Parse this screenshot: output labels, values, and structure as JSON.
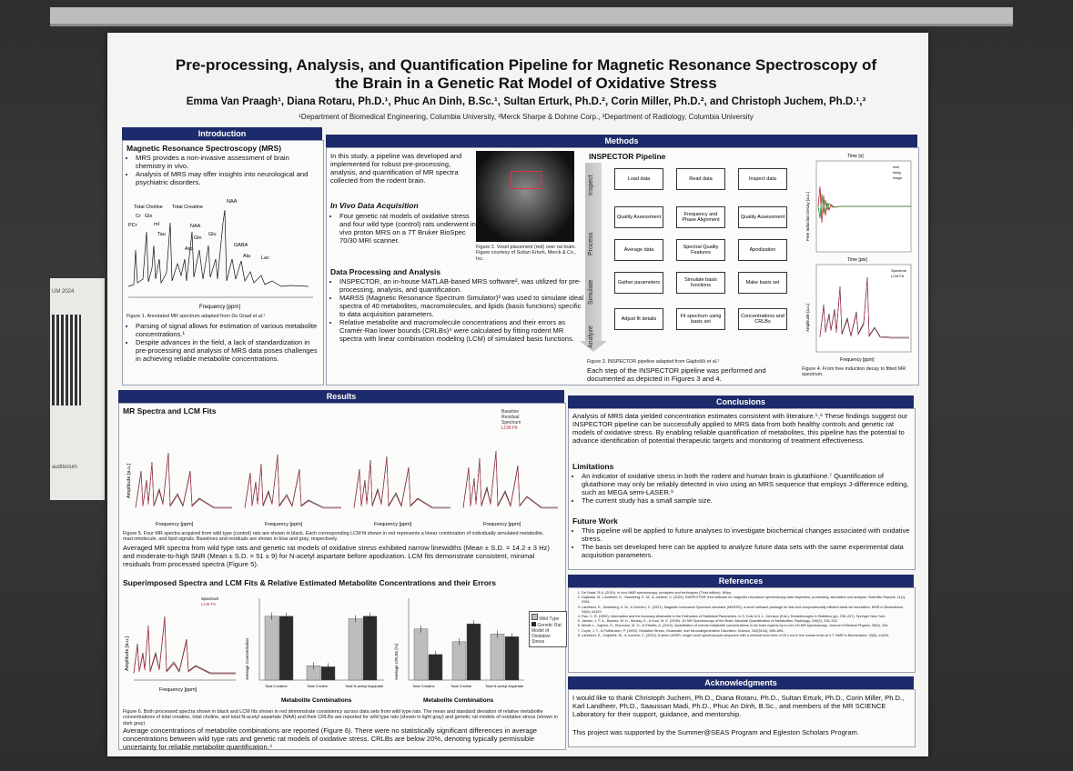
{
  "side": {
    "line1": "UM 2024",
    "line2": "auditorium"
  },
  "poster": {
    "title": "Pre-processing, Analysis, and Quantification Pipeline for Magnetic Resonance Spectroscopy of the Brain in a Genetic Rat Model of Oxidative Stress",
    "authors": "Emma Van Praagh¹, Diana Rotaru, Ph.D.¹, Phuc An Dinh, B.Sc.¹, Sultan Erturk, Ph.D.², Corin Miller, Ph.D.², and Christoph Juchem, Ph.D.¹,³",
    "affiliations": "¹Department of Biomedical Engineering, Columbia University, ²Merck Sharpe & Dohme Corp., ³Department of Radiology, Columbia University"
  },
  "intro": {
    "header": "Introduction",
    "subtitle": "Magnetic Resonance Spectroscopy (MRS)",
    "bullets": [
      "MRS provides a non-invasive assessment of brain chemistry in vivo.",
      "Analysis of MRS may offer insights into neurological and psychiatric disorders."
    ],
    "peaks": [
      "Total Choline",
      "Total Creatine",
      "NAA",
      "Cr",
      "Glx",
      "PCr",
      "mI",
      "Tau",
      "NAA",
      "Gln",
      "Glu",
      "Asp",
      "GABA",
      "Ala",
      "Lac"
    ],
    "axis": "Frequency [ppm]",
    "caption": "Figure 1. Annotated MR spectrum adapted from De Graaf et al.¹",
    "bullets2": [
      "Parsing of signal allows for estimation of various metabolite concentrations.¹",
      "Despite advances in the field, a lack of standardization in pre-processing and analysis of MRS data poses challenges in achieving reliable metabolite concentrations."
    ]
  },
  "methods": {
    "header": "Methods",
    "intro": "In this study, a pipeline was developed and implemented for robust pre-processing, analysis, and quantification of MR spectra collected from the rodent brain.",
    "acq_title": "In Vivo Data Acquisition",
    "acq_bullet": "Four genetic rat models of oxidative stress and four wild type (control) rats underwent in vivo proton MRS on a 7T Bruker BioSpec 70/30 MRI scanner.",
    "fig2_caption": "Figure 2. Voxel placement (red) over rat brain. Figure courtesy of Sultan Erturk, Merck & Co., Inc.",
    "proc_title": "Data Processing and Analysis",
    "proc_bullets": [
      "INSPECTOR, an in-house MATLAB-based MRS software², was utilized for pre-processing, analysis, and quantification.",
      "MARSS (Magnetic Resonance Spectrum Simulator)³ was used to simulate ideal spectra of 40 metabolites, macromolecules, and lipids (basis functions) specific to data acquisition parameters.",
      "Relative metabolite and macromolecule concentrations and their errors as Cramér-Rao lower bounds (CRLBs)⁴ were calculated by fitting rodent MR spectra with linear combination modeling (LCM) of simulated basis functions."
    ],
    "pipeline_title": "INSPECTOR Pipeline",
    "stages": [
      "Inspect",
      "Process",
      "Simulate",
      "Analyze"
    ],
    "flow": [
      [
        "Load data",
        "Read data",
        "Inspect data"
      ],
      [
        "Quality Assessment",
        "Frequency and Phase Alignment",
        "Quality Assessment"
      ],
      [
        "Average data",
        "Spectral Quality Features",
        "Apodization"
      ],
      [
        "Gather parameters",
        "Simulate basis functions",
        "Make basis set"
      ],
      [
        "Adjust fit details",
        "Fit spectrum using basis set",
        "Concentrations and CRLBs"
      ]
    ],
    "fig3_caption": "Figure 3. INSPECTOR pipeline adapted from Gajdošík et al.²",
    "fig3_text": "Each step of the INSPECTOR pipeline was performed and documented as depicted in Figures 3 and 4.",
    "fig4": {
      "top_axis": "Time [s]",
      "top_ylabel": "Free Induction Decay [a.u.]",
      "legend1": [
        "real",
        "imag",
        "magn"
      ],
      "mid_axis": "Time [pts]",
      "legend2": [
        "Spectrum",
        "LCM Fit"
      ],
      "ylabel2": "Amplitude [a.u.]",
      "xlabel2": "Frequency [ppm]",
      "caption": "Figure 4. From free induction decay to fitted MR spectrum."
    }
  },
  "results": {
    "header": "Results",
    "sub1": "MR Spectra and LCM Fits",
    "legend": [
      "Baseline",
      "Residual",
      "Spectrum",
      "LCM Fit"
    ],
    "ylabel": "Amplitude [a.u.]",
    "xlabel": "Frequency [ppm]",
    "fig5_caption": "Figure 5. Four MR spectra acquired from wild type (control) rats are shown in black. Each corresponding LCM fit shown in red represents a linear combination of individually simulated metabolite, macromolecule, and lipid signals. Baselines and residuals are shown in blue and gray, respectively.",
    "para1": "Averaged MR spectra from wild type rats and genetic rat models of oxidative stress exhibited narrow linewidths (Mean ± S.D. = 14.2 ± 3 Hz) and moderate-to-high SNR (Mean ± S.D. = 51 ± 9) for N-acetyl aspartate before apodization. LCM fits demonstrate consistent, minimal residuals from processed spectra (Figure 5).",
    "sub2": "Superimposed Spectra and LCM Fits & Relative Estimated Metabolite Concentrations and their Errors",
    "legend6": [
      "Spectrum",
      "LCM Fit"
    ],
    "bar_ylabel1": "Average Concentration",
    "bar_ylabel2": "Average CRLBs [%]",
    "bar_xlabel": "Metabolite Combinations",
    "bar_categories": [
      "Total Creatine",
      "Total Choline",
      "Total N-acetyl Aspartate"
    ],
    "bar_legend": [
      "Wild Type",
      "Genetic Rat Model of Oxidative Stress"
    ],
    "fig6_caption": "Figure 6. Both processed spectra shown in black and LCM fits shown in red demonstrate consistency across data sets from wild type rats. The mean and standard deviation of relative metabolite concentrations of total creatine, total choline, and total N-acetyl aspartate (NAA) and their CRLBs are reported for wild type rats (shown in light gray) and genetic rat models of oxidative stress (shown in dark gray).",
    "para2": "Average concentrations of metabolite combinations are reported (Figure 6). There were no statistically significant differences in average concentrations between wild type rats and genetic rat models of oxidative stress. CRLBs are below 20%, denoting typically permissible uncertainty for reliable metabolite quantification.⁴"
  },
  "chart_data": [
    {
      "type": "bar",
      "categories": [
        "Total Creatine",
        "Total Choline",
        "Total N-acetyl Aspartate"
      ],
      "series": [
        {
          "name": "Wild Type",
          "values": [
            12.5,
            2.8,
            12.0
          ]
        },
        {
          "name": "Genetic Rat Model of Oxidative Stress",
          "values": [
            12.5,
            2.6,
            12.5
          ]
        }
      ],
      "ylabel": "Average Concentration",
      "xlabel": "Metabolite Combinations",
      "ylim": [
        0,
        16
      ]
    },
    {
      "type": "bar",
      "categories": [
        "Total Creatine",
        "Total Choline",
        "Total N-acetyl Aspartate"
      ],
      "series": [
        {
          "name": "Wild Type",
          "values": [
            10,
            7.5,
            9
          ]
        },
        {
          "name": "Genetic Rat Model of Oxidative Stress",
          "values": [
            5,
            11,
            8.5
          ]
        }
      ],
      "ylabel": "Average CRLBs [%]",
      "xlabel": "Metabolite Combinations",
      "ylim": [
        0,
        16
      ]
    }
  ],
  "conclusions": {
    "header": "Conclusions",
    "para": "Analysis of MRS data yielded concentration estimates consistent with literature.⁵,⁶ These findings suggest our INSPECTOR pipeline can be successfully applied to MRS data from both healthy controls and genetic rat models of oxidative stress. By enabling reliable quantification of metabolites, this pipeline has the potential to advance identification of potential therapeutic targets and monitoring of treatment effectiveness.",
    "lim_title": "Limitations",
    "lim_bullets": [
      "An indicator of oxidative stress in both the rodent and human brain is glutathione.⁷ Quantification of glutathione may only be reliably detected in vivo using an MRS sequence that employs J-difference editing, such as MEGA semi-LASER.⁸",
      "The current study has a small sample size."
    ],
    "fw_title": "Future Work",
    "fw_bullets": [
      "This pipeline will be applied to future analyses to investigate biochemical changes associated with oxidative stress.",
      "The basis set developed here can be applied to analyze future data sets with the same experimental data acquisition parameters."
    ]
  },
  "references": {
    "header": "References",
    "items": [
      "De Graaf, R.A. (2019). In vivo NMR spectroscopy: principles and techniques (Third edition). Wiley.",
      "Gajdošík, M., Landheer, K., Swanberg, K. M., & Juchem, C. (2021). INSPECTOR: free software for magnetic resonance spectroscopy data inspection, processing, simulation and analysis. Scientific Reports, 11(1), 2094.",
      "Landheer, K., Swanberg, K. M., & Juchem, C. (2021). Magnetic resonance Spectrum simulator (MARSS), a novel software package for fast and computationally efficient basis set simulation. NMR in Biomedicine, 34(5), e4129.",
      "Rao, C. R. (1992). Information and the Accuracy Attainable in the Estimation of Statistical Parameters. In S. Kotz & N. L. Johnson (Eds.), Breakthroughs in Statistics (pp. 235–247). Springer New York.",
      "Jansen, J. F. A., Backes, W. H., Nicolay, K., & Kooi, M. E. (2006). 1H MR Spectroscopy of the Brain: Absolute Quantification of Metabolites. Radiology, 240(2), 318–332.",
      "Minati, L., Aquino, D., Bruzzone, M. G., & Erbetta, A. (2010). Quantitation of normal metabolite concentrations in six brain regions by in-vivo 1H-MR spectroscopy. Journal of Medical Physics, 35(3), 154.",
      "Coyle, J. T., & Puttfarcken, P. (1993). Oxidative Stress, Glutamate, and Neurodegenerative Disorders. Science, 262(5134), 689–695.",
      "Landheer, K., Gajdošík, M., & Juchem, C. (2020). A semi-LASER, single-voxel spectroscopic sequence with a minimal echo time of 20.1 ms in the human brain at 3 T. NMR in Biomedicine, 33(9), e4324."
    ]
  },
  "acknowledgments": {
    "header": "Acknowledgments",
    "para1": "I would like to thank Christoph Juchem, Ph.D., Diana Rotaru, Ph.D., Sultan Erturk, Ph.D., Corin Miller, Ph.D., Karl Landheer, Ph.D., Saaussan Madi, Ph.D., Phuc An Dinh, B.Sc., and members of the MR SCIENCE Laboratory for their support, guidance, and mentorship.",
    "para2": "This project was supported by the Summer@SEAS Program and Egleston Scholars Program."
  },
  "colors": {
    "header": "#1d2a6b",
    "fit": "#b0304a",
    "light_bar": "#bdbdbd",
    "dark_bar": "#2b2b2b"
  }
}
